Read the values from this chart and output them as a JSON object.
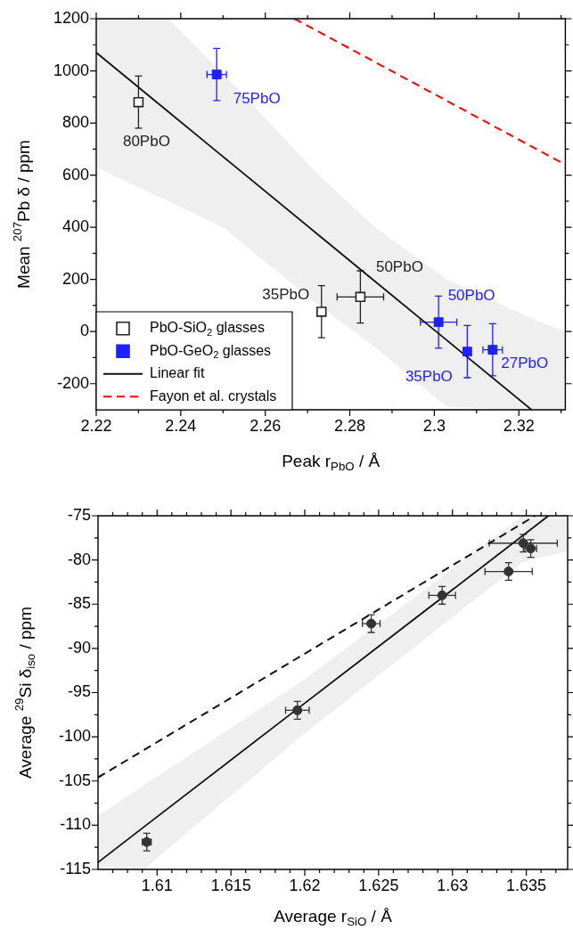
{
  "chart_data": [
    {
      "type": "scatter",
      "xlabel": "Peak r$_{PbO}$ / Å",
      "ylabel": "Mean $^{207}$Pb δ / ppm",
      "xlim": [
        2.22,
        2.331
      ],
      "ylim": [
        -300,
        1200
      ],
      "xticks": [
        2.22,
        2.24,
        2.26,
        2.28,
        2.3,
        2.32,
        {
          "value": 2.23,
          "label": null
        },
        {
          "value": 2.25,
          "label": null
        },
        {
          "value": 2.27,
          "label": null
        },
        {
          "value": 2.29,
          "label": null
        },
        {
          "value": 2.31,
          "label": null
        },
        {
          "value": 2.33,
          "label": null
        }
      ],
      "yticks": [
        -200,
        0,
        200,
        400,
        600,
        800,
        1000,
        1200,
        {
          "value": -100,
          "label": null
        },
        {
          "value": 100,
          "label": null
        },
        {
          "value": 300,
          "label": null
        },
        {
          "value": 500,
          "label": null
        },
        {
          "value": 700,
          "label": null
        },
        {
          "value": 900,
          "label": null
        },
        {
          "value": 1100,
          "label": null
        }
      ],
      "grid": false,
      "legend": "bottom left",
      "series": [
        {
          "name": "PbO-SiO$_{2}$ glasses",
          "type": "scatter",
          "marker": "square",
          "color": "#222222",
          "x": [
            2.23,
            2.2733,
            2.2825
          ],
          "values": [
            880,
            76,
            133
          ],
          "errors": [
            100,
            100,
            100
          ],
          "xerrors": [
            null,
            null,
            0.0055
          ]
        },
        {
          "name": "PbO-GeO$_{2}$ glasses",
          "type": "scatter",
          "marker": "square",
          "color": "#1f1fff",
          "x": [
            2.2485,
            2.301,
            2.3078,
            2.3138
          ],
          "values": [
            986,
            36,
            -77,
            -70
          ],
          "errors": [
            100,
            100,
            100,
            100
          ],
          "xerrors": [
            0.0023,
            0.0043,
            null,
            0.0023
          ]
        },
        {
          "name": "Linear fit",
          "type": "line",
          "marker": "none",
          "line_style": "solid",
          "color": "#111111",
          "x": [
            2.22,
            2.237,
            2.25,
            2.2727,
            2.286,
            2.303,
            2.323,
            2.331
          ],
          "values": [
            1070,
            844,
            671,
            369,
            192,
            -34,
            -300,
            null
          ],
          "upper": [
            1200,
            1200,
            990,
            600,
            400,
            200,
            50,
            0
          ],
          "lower": [
            630,
            500,
            400,
            100,
            -60,
            -290,
            -300,
            -300
          ]
        },
        {
          "name": "Fayon et al. crystals",
          "type": "line",
          "marker": "none",
          "line_style": "dashed",
          "color": "#ff0000",
          "x": [
            2.2669,
            2.331
          ],
          "values": [
            1200,
            640
          ]
        }
      ],
      "annotations": [
        {
          "text": "80PbO",
          "x": 2.23,
          "y": 880
        },
        {
          "text": "75PbO",
          "x": 2.2485,
          "y": 986
        },
        {
          "text": "35PbO",
          "x": 2.2733,
          "y": 76
        },
        {
          "text": "50PbO",
          "x": 2.2825,
          "y": 133
        },
        {
          "text": "50PbO",
          "x": 2.301,
          "y": 36
        },
        {
          "text": "35PbO",
          "x": 2.3078,
          "y": -77
        },
        {
          "text": "27PbO",
          "x": 2.3138,
          "y": -70
        }
      ]
    },
    {
      "type": "scatter",
      "xlabel": "Average r$_{SiO}$ / Å",
      "ylabel": "Average $^{29}$Si δ$_{iso}$ / ppm",
      "xlim": [
        1.606,
        1.6378
      ],
      "ylim": [
        -115,
        -75
      ],
      "xticks": [
        1.61,
        1.615,
        1.62,
        1.625,
        1.63,
        1.635,
        {
          "value": 1.607,
          "label": null
        },
        {
          "value": 1.608,
          "label": null
        },
        {
          "value": 1.609,
          "label": null
        },
        {
          "value": 1.611,
          "label": null
        },
        {
          "value": 1.612,
          "label": null
        },
        {
          "value": 1.613,
          "label": null
        },
        {
          "value": 1.614,
          "label": null
        },
        {
          "value": 1.616,
          "label": null
        },
        {
          "value": 1.617,
          "label": null
        },
        {
          "value": 1.618,
          "label": null
        },
        {
          "value": 1.619,
          "label": null
        },
        {
          "value": 1.621,
          "label": null
        },
        {
          "value": 1.622,
          "label": null
        },
        {
          "value": 1.623,
          "label": null
        },
        {
          "value": 1.624,
          "label": null
        },
        {
          "value": 1.626,
          "label": null
        },
        {
          "value": 1.627,
          "label": null
        },
        {
          "value": 1.628,
          "label": null
        },
        {
          "value": 1.629,
          "label": null
        },
        {
          "value": 1.631,
          "label": null
        },
        {
          "value": 1.632,
          "label": null
        },
        {
          "value": 1.633,
          "label": null
        },
        {
          "value": 1.634,
          "label": null
        },
        {
          "value": 1.636,
          "label": null
        },
        {
          "value": 1.637,
          "label": null
        }
      ],
      "yticks": [
        -115,
        -110,
        -105,
        -100,
        -95,
        -90,
        -85,
        -80,
        -75,
        {
          "value": -112.5,
          "label": null
        },
        {
          "value": -107.5,
          "label": null
        },
        {
          "value": -102.5,
          "label": null
        },
        {
          "value": -97.5,
          "label": null
        },
        {
          "value": -92.5,
          "label": null
        },
        {
          "value": -87.5,
          "label": null
        },
        {
          "value": -82.5,
          "label": null
        },
        {
          "value": -77.5,
          "label": null
        }
      ],
      "grid": false,
      "series": [
        {
          "type": "line",
          "marker": "none",
          "line_style": "solid",
          "color": "#111111",
          "x": [
            1.606,
            1.6091,
            1.62,
            1.6348,
            1.6365,
            1.6378
          ],
          "values": [
            -114.2,
            -110.2,
            -96.2,
            -77.2,
            -75,
            null
          ],
          "upper": [
            -108.9,
            -105.5,
            -93.5,
            -75,
            -75,
            -75
          ],
          "lower": [
            -115,
            -115,
            -99.6,
            -80.2,
            -79.5,
            -79
          ]
        },
        {
          "type": "line",
          "marker": "none",
          "line_style": "dashed",
          "color": "#111111",
          "x": [
            1.606,
            1.6356
          ],
          "values": [
            -104.6,
            -75
          ]
        },
        {
          "type": "scatter",
          "marker": "circle",
          "color": "#333333",
          "x": [
            1.6093,
            1.6195,
            1.6245,
            1.6293,
            1.6338,
            1.6348,
            1.6353
          ],
          "values": [
            -111.9,
            -97.0,
            -87.2,
            -84.0,
            -81.3,
            -78.1,
            -78.7
          ],
          "errors": [
            1,
            1,
            1,
            1,
            1,
            1,
            1
          ],
          "xerrors": [
            0.0003,
            0.0008,
            0.0006,
            0.0009,
            0.0016,
            0.0023,
            0.0004
          ]
        }
      ]
    }
  ]
}
